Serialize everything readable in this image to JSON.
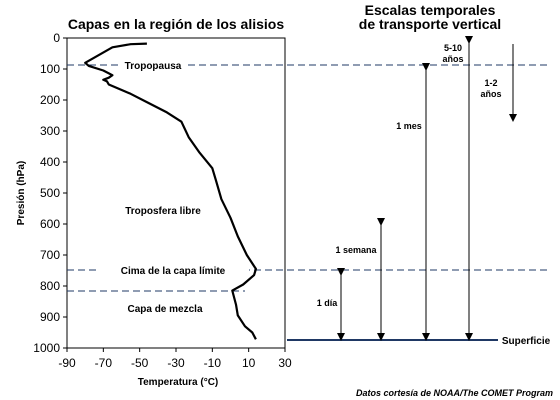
{
  "left_title": "Capas en la región de los alisios",
  "right_title_line1": "Escalas temporales",
  "right_title_line2": "de transporte vertical",
  "y_axis": {
    "label": "Presión (hPa)",
    "ticks": [
      "0",
      "100",
      "200",
      "300",
      "400",
      "500",
      "600",
      "700",
      "800",
      "900",
      "1000"
    ]
  },
  "x_axis": {
    "label": "Temperatura (°C)",
    "ticks": [
      "-90",
      "-70",
      "-50",
      "-30",
      "-10",
      "10",
      "30"
    ]
  },
  "layers": {
    "tropopause": "Tropopausa",
    "free_troposphere": "Troposfera libre",
    "boundary_top": "Cima de la capa límite",
    "mixed_layer": "Capa de mezcla"
  },
  "scales": {
    "one_day": "1 día",
    "one_week": "1 semana",
    "one_month": "1 mes",
    "five_ten_years_1": "5-10",
    "five_ten_years_2": "años",
    "one_two_years_1": "1-2",
    "one_two_years_2": "años"
  },
  "surface_label": "Superficie",
  "credit": "Datos cortesía de NOAA/The COMET Program",
  "chart_data": {
    "type": "line",
    "x_unit": "°C",
    "y_unit": "hPa",
    "xlim": [
      -90,
      30
    ],
    "ylim": [
      1000,
      0
    ],
    "levels_hPa": {
      "tropopause": 85,
      "boundary_top": 750,
      "mixed_layer_top": 815,
      "surface": 975
    },
    "profile": [
      [
        -46,
        18
      ],
      [
        -55,
        20
      ],
      [
        -65,
        30
      ],
      [
        -80,
        80
      ],
      [
        -78,
        90
      ],
      [
        -70,
        105
      ],
      [
        -65,
        120
      ],
      [
        -67,
        128
      ],
      [
        -70,
        135
      ],
      [
        -68,
        140
      ],
      [
        -67,
        150
      ],
      [
        -55,
        180
      ],
      [
        -45,
        210
      ],
      [
        -35,
        240
      ],
      [
        -27,
        270
      ],
      [
        -23,
        320
      ],
      [
        -17,
        370
      ],
      [
        -10,
        420
      ],
      [
        -8,
        460
      ],
      [
        -5,
        520
      ],
      [
        0,
        580
      ],
      [
        4,
        640
      ],
      [
        9,
        700
      ],
      [
        14,
        745
      ],
      [
        13,
        765
      ],
      [
        7,
        795
      ],
      [
        1,
        815
      ],
      [
        3,
        860
      ],
      [
        4,
        895
      ],
      [
        8,
        930
      ],
      [
        12,
        950
      ],
      [
        14,
        972
      ]
    ]
  },
  "colors": {
    "surface_line": "#1f3864",
    "dashed_line": "#1f3864"
  }
}
